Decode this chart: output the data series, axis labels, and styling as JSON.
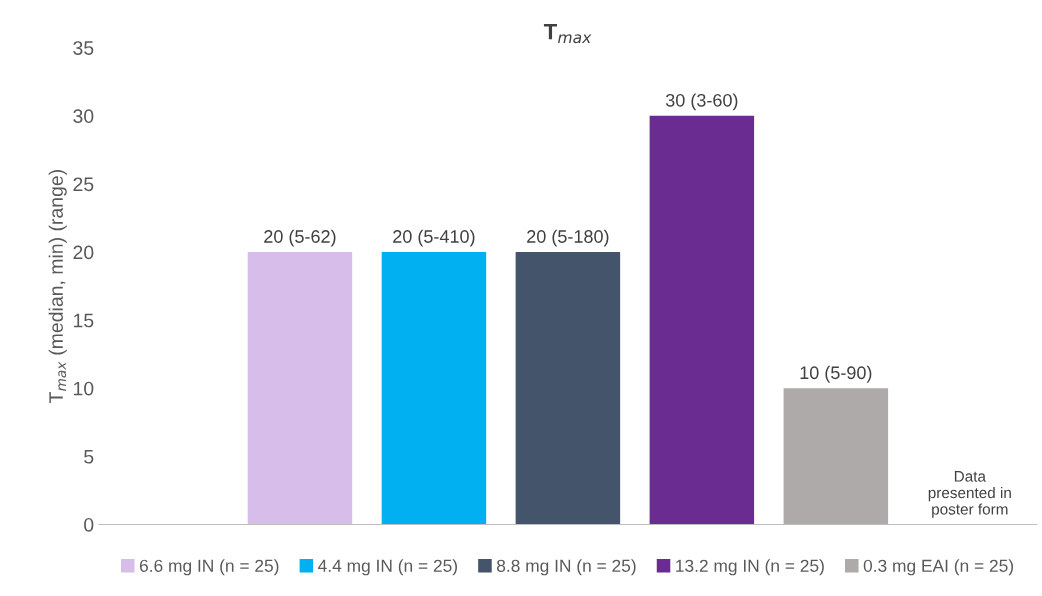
{
  "chart_data": {
    "type": "bar",
    "title": "T$_{max}$",
    "ylabel": "T$_{max}$ (median, min) (range)",
    "categories": [
      null,
      null,
      null,
      null,
      null,
      null,
      null
    ],
    "series": [
      {
        "name": "6.6 mg IN (n = 25)",
        "color": "#d7bde9",
        "values": [
          null,
          20,
          null,
          null,
          null,
          null,
          null
        ],
        "value_labels": [
          null,
          "20 (5-62)",
          null,
          null,
          null,
          null,
          null
        ]
      },
      {
        "name": "4.4 mg IN (n = 25)",
        "color": "#00b0f0",
        "values": [
          null,
          null,
          20,
          null,
          null,
          null,
          null
        ],
        "value_labels": [
          null,
          null,
          "20 (5-410)",
          null,
          null,
          null,
          null
        ]
      },
      {
        "name": "8.8 mg IN (n = 25)",
        "color": "#44546a",
        "values": [
          null,
          null,
          null,
          20,
          null,
          null,
          null
        ],
        "value_labels": [
          null,
          null,
          null,
          "20 (5-180)",
          null,
          null,
          null
        ]
      },
      {
        "name": "13.2 mg IN (n = 25)",
        "color": "#6a2c91",
        "values": [
          null,
          null,
          null,
          null,
          30,
          null,
          null
        ],
        "value_labels": [
          null,
          null,
          null,
          null,
          "30 (3-60)",
          null,
          null
        ]
      },
      {
        "name": "0.3 mg EAI (n = 25)",
        "color": "#aeaaaa",
        "values": [
          null,
          null,
          null,
          null,
          null,
          10,
          null
        ],
        "value_labels": [
          null,
          null,
          null,
          null,
          null,
          "10 (5-90)",
          null
        ]
      }
    ],
    "ylim": [
      0,
      35
    ],
    "yticks": [
      0,
      5,
      10,
      15,
      20,
      25,
      30,
      35
    ],
    "grid": false,
    "legend": "bottom",
    "annotations": [
      "Data\npresented in\nposter form"
    ]
  }
}
